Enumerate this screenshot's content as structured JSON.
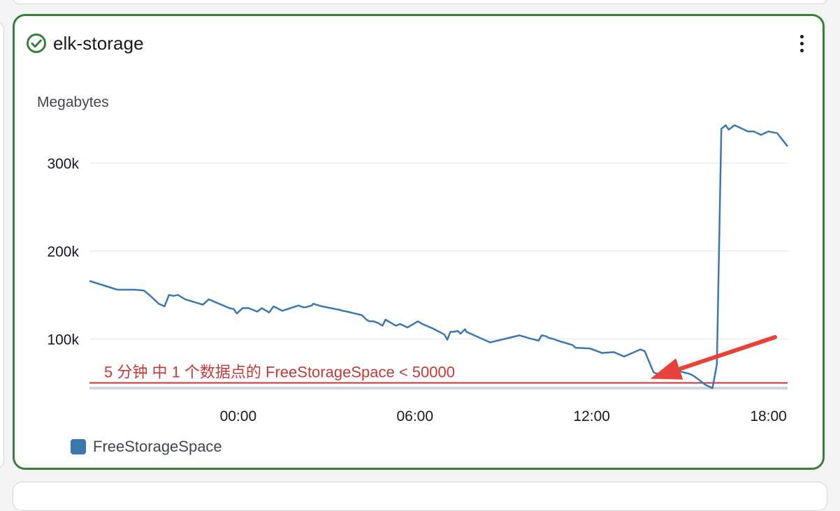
{
  "widget": {
    "title": "elk-storage",
    "status_icon": "check-circle-icon",
    "status_color": "#3b7d3b",
    "menu_icon": "more-vertical-icon"
  },
  "chart_data": {
    "type": "line",
    "ylabel": "Megabytes",
    "x_ticks": [
      "00:00",
      "06:00",
      "12:00",
      "18:00"
    ],
    "y_ticks": [
      "100k",
      "200k",
      "300k"
    ],
    "ylim": [
      44000,
      364000
    ],
    "xlim": [
      -5.05,
      18.65
    ],
    "grid": "horizontal",
    "legend_position": "bottom-left",
    "series": [
      {
        "name": "FreeStorageSpace",
        "color": "#3b78b0",
        "x": [
          -5.05,
          -4.1,
          -3.5,
          -3.2,
          -2.95,
          -2.7,
          -2.5,
          -2.35,
          -2.2,
          -2.05,
          -1.8,
          -1.2,
          -1.0,
          -0.3,
          -0.15,
          -0.05,
          0.15,
          0.35,
          0.5,
          0.65,
          0.8,
          0.9,
          1.05,
          1.2,
          1.5,
          2.05,
          2.2,
          2.3,
          2.5,
          2.55,
          2.65,
          2.85,
          3.0,
          3.15,
          3.3,
          3.45,
          3.55,
          3.7,
          4.2,
          4.35,
          4.45,
          4.6,
          4.75,
          4.9,
          5.0,
          5.35,
          5.5,
          5.75,
          6.1,
          6.25,
          6.6,
          7.0,
          7.1,
          7.2,
          7.3,
          7.45,
          7.55,
          7.7,
          7.75,
          8.55,
          9.55,
          9.85,
          10.2,
          10.3,
          10.45,
          10.55,
          10.7,
          10.85,
          11.05,
          11.35,
          11.45,
          11.95,
          12.35,
          12.75,
          13.1,
          13.65,
          13.8,
          14.0,
          14.1,
          14.25,
          14.4,
          14.6,
          14.75,
          14.85,
          15.0,
          15.35,
          15.5,
          15.7,
          15.85,
          16.1,
          16.25,
          16.4,
          16.55,
          16.65,
          16.85,
          17.05,
          17.3,
          17.5,
          17.75,
          18.0,
          18.3,
          18.65
        ],
        "y": [
          166000,
          156000,
          156000,
          155000,
          148000,
          140000,
          137000,
          150000,
          149000,
          150000,
          145000,
          139000,
          145000,
          135000,
          134000,
          129000,
          135000,
          135000,
          133000,
          131000,
          135000,
          133000,
          130000,
          137000,
          132000,
          138000,
          136000,
          136000,
          138000,
          140000,
          139000,
          137000,
          136000,
          135000,
          134000,
          133000,
          132000,
          131000,
          127000,
          122000,
          120000,
          120000,
          118000,
          115000,
          122000,
          115000,
          117000,
          113000,
          120000,
          117000,
          112000,
          105000,
          99000,
          108000,
          108000,
          109000,
          106000,
          111000,
          108000,
          96000,
          104000,
          101000,
          98000,
          104000,
          103000,
          101000,
          100000,
          98000,
          96000,
          93000,
          90000,
          89000,
          84000,
          85000,
          80000,
          88000,
          86000,
          70000,
          62000,
          60000,
          64000,
          62000,
          60000,
          58000,
          63000,
          60000,
          57000,
          52000,
          48000,
          44000,
          71000,
          339000,
          343000,
          338000,
          343000,
          340000,
          336000,
          336000,
          332000,
          336000,
          334000,
          319000
        ]
      }
    ],
    "threshold": {
      "value": 50000,
      "color": "#c4393b"
    },
    "annotation": {
      "text": "5 分钟 中 1 个数据点的 FreeStorageSpace < 50000",
      "color": "#c4393b",
      "arrow": "red-arrow",
      "target_x": 13.8,
      "target_y": 50000
    }
  }
}
